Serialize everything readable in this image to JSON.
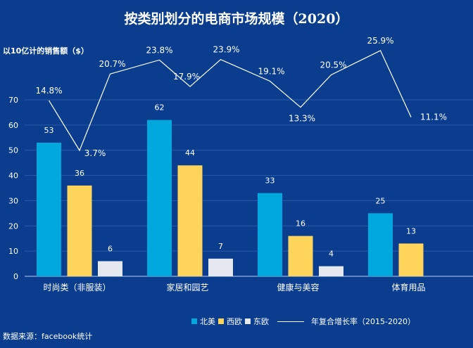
{
  "chart_data": {
    "type": "bar",
    "title": "按类别划分的电商市场规模（2020）",
    "ylabel": "以10亿计的销售额（$）",
    "ylim": [
      0,
      70
    ],
    "yticks": [
      0,
      10,
      20,
      30,
      40,
      50,
      60,
      70
    ],
    "grid": true,
    "legend_position": "bottom",
    "categories": [
      "时尚类（非服装）",
      "家居和园艺",
      "健康与美容",
      "体育用品"
    ],
    "series": [
      {
        "name": "北美",
        "color": "#00a8de",
        "values": [
          53,
          62,
          33,
          25
        ]
      },
      {
        "name": "西欧",
        "color": "#ffd45a",
        "values": [
          36,
          44,
          16,
          13
        ]
      },
      {
        "name": "东欧",
        "color": "#e6e8ef",
        "values": [
          6,
          7,
          4,
          null
        ]
      }
    ],
    "line_series": {
      "name": "年复合增长率（2015-2020）",
      "color": "#ffffff",
      "values": [
        14.8,
        3.7,
        20.7,
        23.8,
        17.9,
        23.9,
        19.1,
        13.3,
        20.5,
        25.9,
        11.1
      ],
      "labels": [
        "14.8%",
        "3.7%",
        "20.7%",
        "23.8%",
        "17.9%",
        "23.9%",
        "19.1%",
        "13.3%",
        "20.5%",
        "25.9%",
        "11.1%"
      ]
    }
  },
  "source": "数据来源：facebook统计"
}
